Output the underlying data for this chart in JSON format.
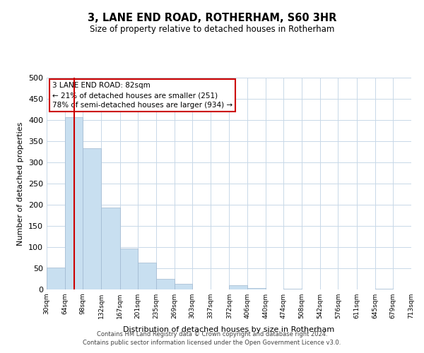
{
  "title": "3, LANE END ROAD, ROTHERHAM, S60 3HR",
  "subtitle": "Size of property relative to detached houses in Rotherham",
  "xlabel": "Distribution of detached houses by size in Rotherham",
  "ylabel": "Number of detached properties",
  "bar_color": "#c8dff0",
  "bar_edge_color": "#a0b8d0",
  "property_line_color": "#cc0000",
  "property_value": 82,
  "annotation_title": "3 LANE END ROAD: 82sqm",
  "annotation_line1": "← 21% of detached houses are smaller (251)",
  "annotation_line2": "78% of semi-detached houses are larger (934) →",
  "annotation_box_color": "#ffffff",
  "annotation_box_edge": "#cc0000",
  "bin_edges": [
    30,
    64,
    98,
    132,
    167,
    201,
    235,
    269,
    303,
    337,
    372,
    406,
    440,
    474,
    508,
    542,
    576,
    611,
    645,
    679,
    713
  ],
  "bar_heights": [
    52,
    406,
    333,
    193,
    97,
    63,
    25,
    14,
    0,
    0,
    10,
    4,
    0,
    1,
    0,
    0,
    0,
    0,
    1,
    0
  ],
  "ylim": [
    0,
    500
  ],
  "yticks": [
    0,
    50,
    100,
    150,
    200,
    250,
    300,
    350,
    400,
    450,
    500
  ],
  "footer_line1": "Contains HM Land Registry data © Crown copyright and database right 2024.",
  "footer_line2": "Contains public sector information licensed under the Open Government Licence v3.0.",
  "background_color": "#ffffff",
  "grid_color": "#c8d8e8"
}
